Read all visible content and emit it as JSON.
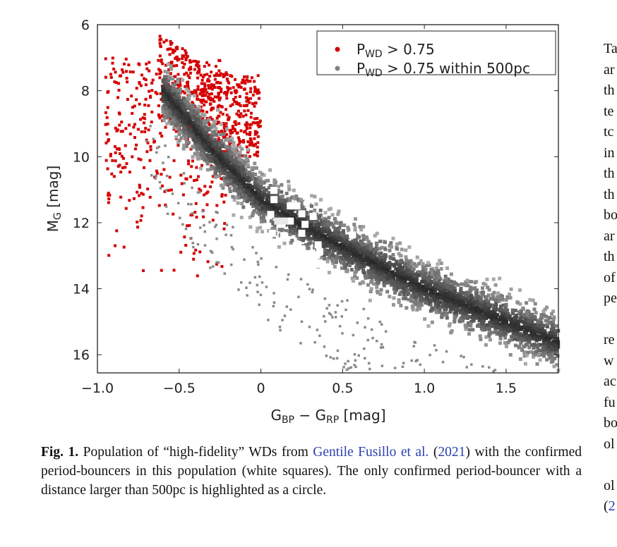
{
  "chart_data": {
    "type": "scatter",
    "xlabel": "G_BP − G_RP [mag]",
    "xlabel_parts": {
      "g1": "G",
      "s1": "BP",
      "mid": " − G",
      "s2": "RP",
      "unit": " [mag]"
    },
    "ylabel_parts": {
      "m": "M",
      "sub": "G",
      "unit": " [mag]"
    },
    "xlim": [
      -1.0,
      1.82
    ],
    "ylim": [
      16.55,
      6.0
    ],
    "y_inverted": true,
    "xticks": [
      -1.0,
      -0.5,
      0,
      0.5,
      1.0,
      1.5
    ],
    "xtick_labels": [
      "−1.0",
      "−0.5",
      "0",
      "0.5",
      "1.0",
      "1.5"
    ],
    "yticks": [
      6,
      8,
      10,
      12,
      14,
      16
    ],
    "ytick_labels": [
      "6",
      "8",
      "10",
      "12",
      "14",
      "16"
    ],
    "legend": {
      "placement": "top-right",
      "entries": [
        {
          "p": "P",
          "sub": "WD",
          "rest": " > 0.75",
          "color": "#d40000"
        },
        {
          "p": "P",
          "sub": "WD",
          "rest": " > 0.75 within 500pc",
          "color": "#808080"
        }
      ]
    },
    "series": [
      {
        "name": "P_WD > 0.75",
        "color": "#d40000",
        "description_region": {
          "x_range": [
            -1.0,
            0.2
          ],
          "y_range": [
            6.1,
            13.5
          ]
        }
      },
      {
        "name": "P_WD > 0.75 within 500pc",
        "color": "#808080",
        "cooling_sequence_ridge": {
          "x": [
            -0.55,
            -0.3,
            0.0,
            0.3,
            0.6,
            1.0,
            1.4,
            1.8
          ],
          "y": [
            8.3,
            9.8,
            11.3,
            12.2,
            13.0,
            14.0,
            14.8,
            15.6
          ]
        }
      },
      {
        "name": "confirmed period-bouncers",
        "color": "#ffffff",
        "marker": "square",
        "points": [
          [
            0.08,
            11.02
          ],
          [
            0.08,
            11.3
          ],
          [
            0.06,
            11.75
          ],
          [
            0.18,
            11.49
          ],
          [
            0.22,
            11.49
          ],
          [
            0.25,
            11.73
          ],
          [
            0.32,
            11.81
          ],
          [
            0.27,
            12.05
          ],
          [
            0.13,
            12.05
          ],
          [
            0.18,
            11.95
          ],
          [
            0.07,
            12.32
          ],
          [
            0.14,
            12.39
          ],
          [
            0.25,
            12.32
          ],
          [
            0.35,
            12.67
          ],
          [
            0.25,
            12.79
          ],
          [
            0.36,
            12.88
          ],
          [
            0.34,
            12.99
          ],
          [
            0.36,
            13.26
          ],
          [
            0.56,
            12.37
          ]
        ]
      },
      {
        "name": "period-bouncer beyond 500pc",
        "color": "#ffffff",
        "marker": "circle",
        "points": [
          [
            0.28,
            11.41
          ]
        ]
      }
    ]
  },
  "caption": {
    "fig_label": "Fig. 1.",
    "text1": " Population of “high-fidelity” WDs from ",
    "link1": "Gentile Fusillo et al.",
    "text2": " (",
    "link2": "2021",
    "text3": ") with the confirmed period-bouncers in this population (white squares). The only confirmed period-bouncer with a distance larger than 500pc is highlighted as a circle."
  },
  "right_column": [
    "Ta",
    "ar",
    "th",
    "te",
    "tc",
    "in",
    "th",
    "th",
    "bo",
    "ar",
    "th",
    "of",
    "pe",
    "",
    "re",
    "w",
    "ac",
    "fu",
    "bo",
    "ol",
    "",
    "ol"
  ],
  "right_column_last": {
    "open": "(",
    "link": "2"
  }
}
